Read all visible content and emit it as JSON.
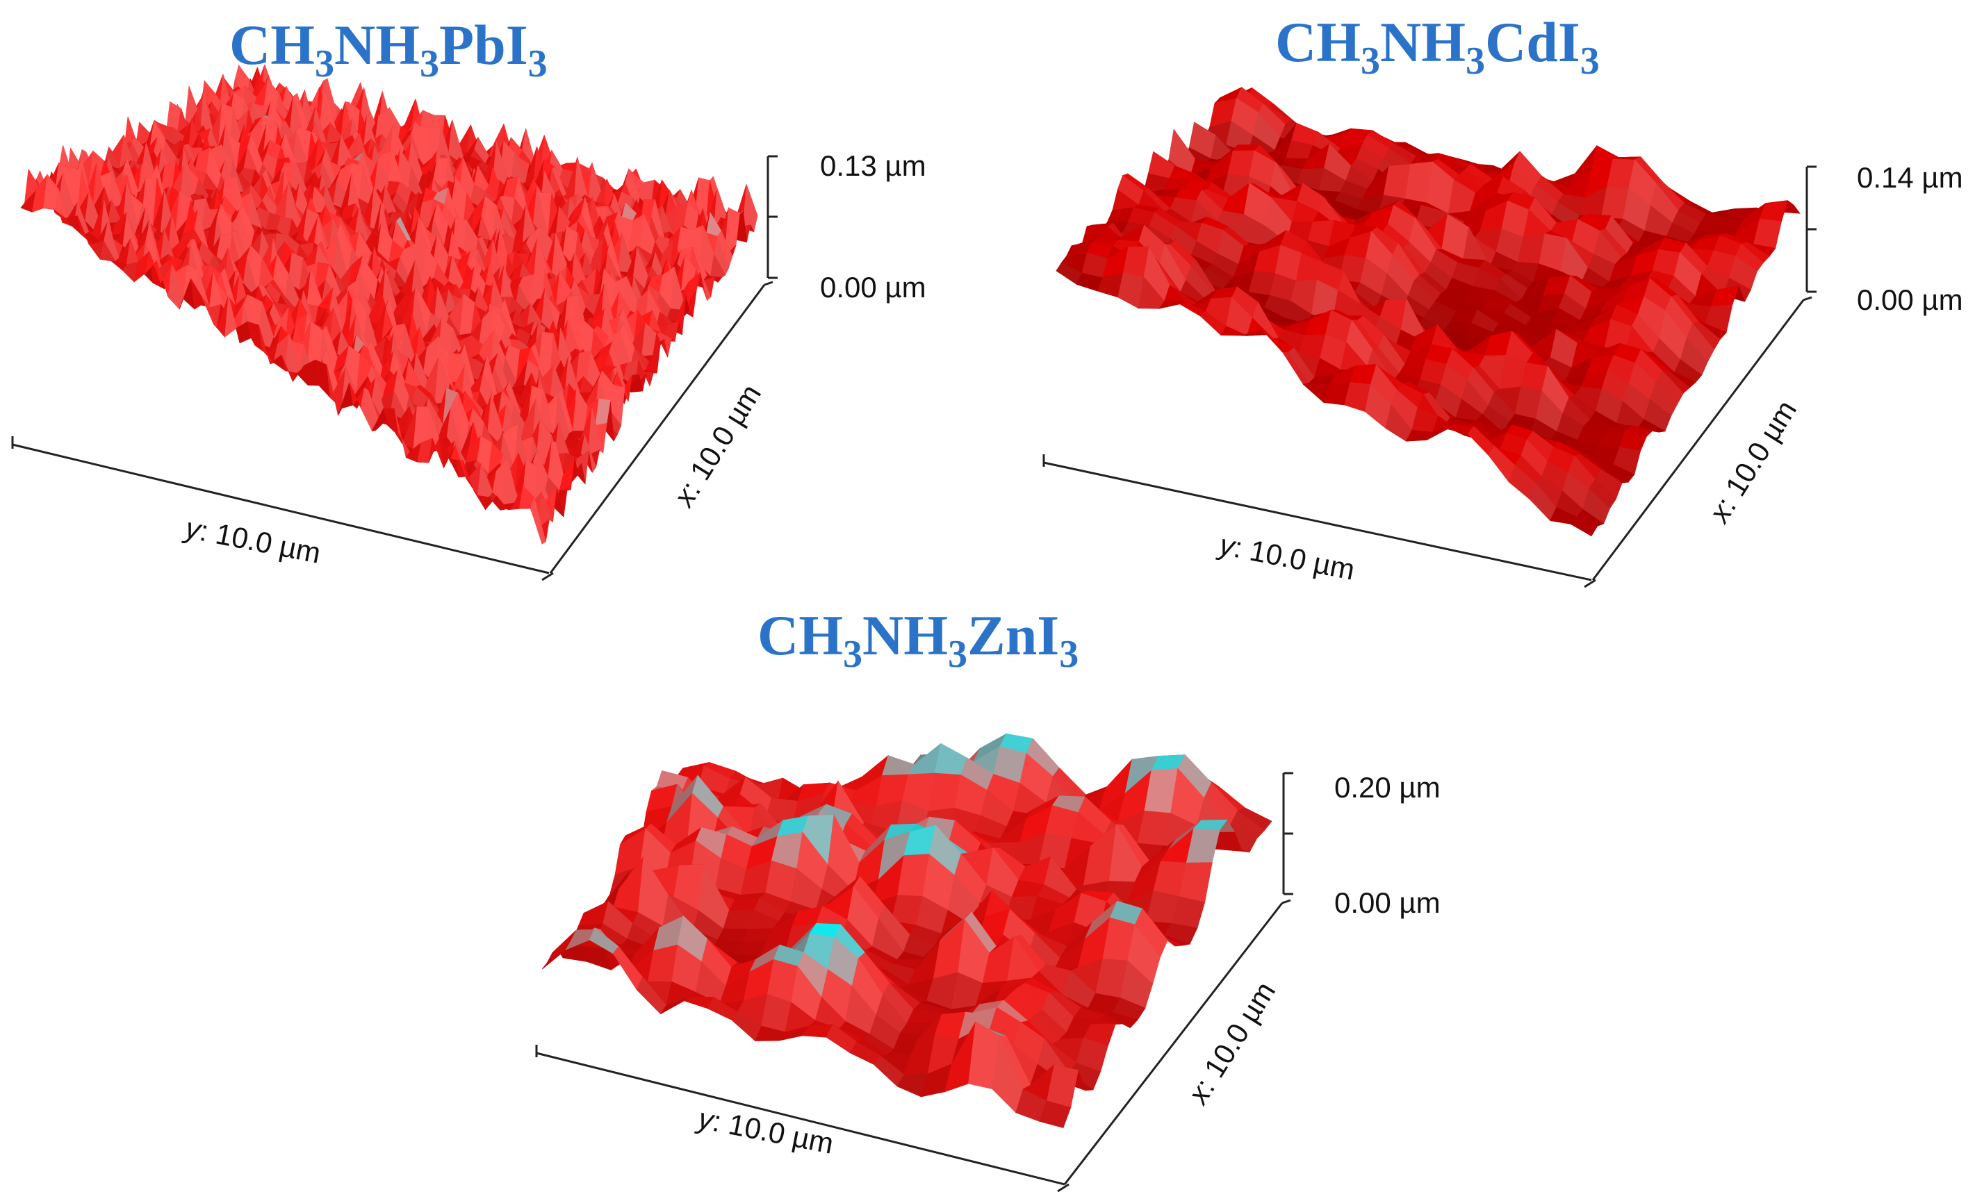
{
  "figure": {
    "panels": [
      {
        "id": "pbi3",
        "formula": [
          {
            "t": "CH",
            "sub": false
          },
          {
            "t": "3",
            "sub": true
          },
          {
            "t": "NH",
            "sub": false
          },
          {
            "t": "3",
            "sub": true
          },
          {
            "t": "PbI",
            "sub": false
          },
          {
            "t": "3",
            "sub": true
          }
        ],
        "z_max_label": "0.13 µm",
        "z_min_label": "0.00 µm",
        "y_axis_prefix": "y",
        "y_axis_value": ": 10.0 µm",
        "x_axis_prefix": "x",
        "x_axis_value": ": 10.0 µm",
        "base_color": "#ff1a1a",
        "peak_color": "#19e6e6",
        "shadow_color": "#b00000"
      },
      {
        "id": "cdi3",
        "formula": [
          {
            "t": "CH",
            "sub": false
          },
          {
            "t": "3",
            "sub": true
          },
          {
            "t": "NH",
            "sub": false
          },
          {
            "t": "3",
            "sub": true
          },
          {
            "t": "CdI",
            "sub": false
          },
          {
            "t": "3",
            "sub": true
          }
        ],
        "z_max_label": "0.14 µm",
        "z_min_label": "0.00 µm",
        "y_axis_prefix": "y",
        "y_axis_value": ": 10.0 µm",
        "x_axis_prefix": "x",
        "x_axis_value": ": 10.0 µm",
        "base_color": "#e00000",
        "peak_color": "#e8e8e8",
        "shadow_color": "#6e0000"
      },
      {
        "id": "zni3",
        "formula": [
          {
            "t": "CH",
            "sub": false
          },
          {
            "t": "3",
            "sub": true
          },
          {
            "t": "NH",
            "sub": false
          },
          {
            "t": "3",
            "sub": true
          },
          {
            "t": "ZnI",
            "sub": false
          },
          {
            "t": "3",
            "sub": true
          }
        ],
        "z_max_label": "0.20 µm",
        "z_min_label": "0.00 µm",
        "y_axis_prefix": "y",
        "y_axis_value": ": 10.0 µm",
        "x_axis_prefix": "x",
        "x_axis_value": ": 10.0 µm",
        "base_color": "#ee1010",
        "peak_color": "#10e8ee",
        "shadow_color": "#8a0000"
      }
    ]
  }
}
